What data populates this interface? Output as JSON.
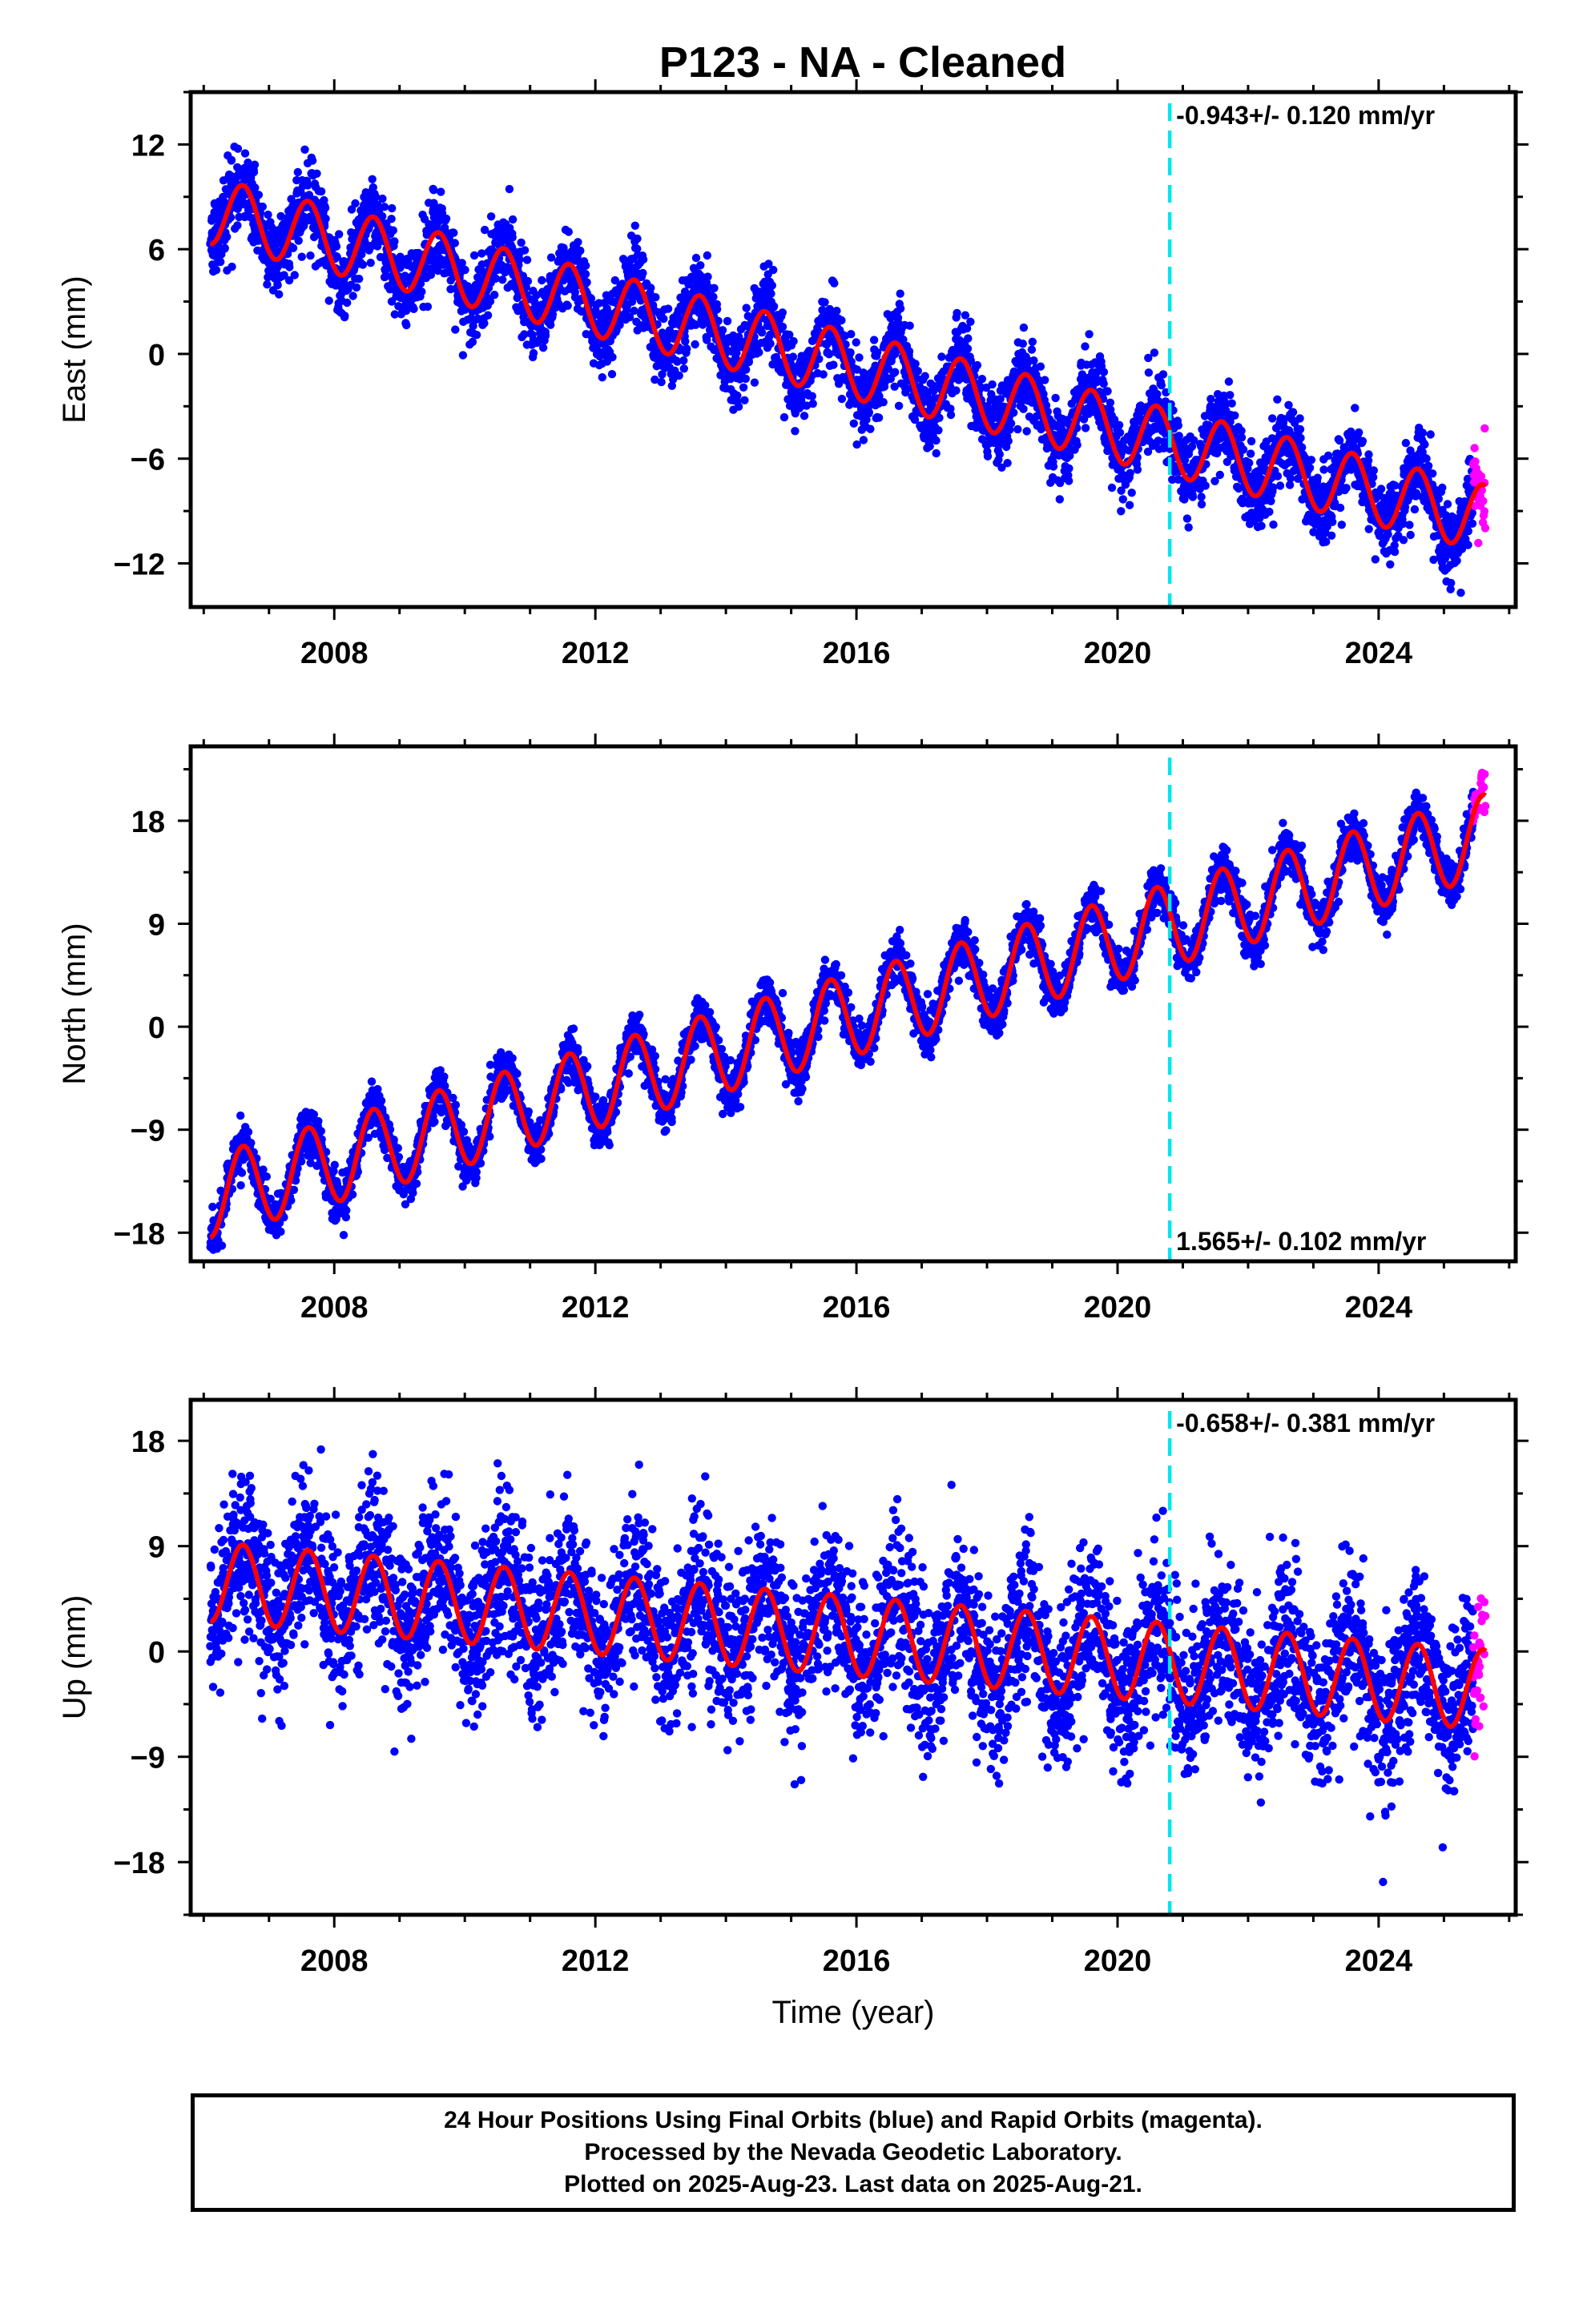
{
  "page": {
    "title": "P123  - NA - Cleaned",
    "footer": [
      "24 Hour Positions Using Final Orbits (blue) and Rapid Orbits (magenta).",
      "Processed by the Nevada Geodetic Laboratory.",
      "Plotted on 2025-Aug-23. Last data on 2025-Aug-21."
    ]
  },
  "colors": {
    "final_orbits": "#0000ff",
    "rapid_orbits": "#ff00ff",
    "model_fit": "#ff0000",
    "event_line": "#00e5ee",
    "frame": "#000000"
  },
  "chart_data": [
    {
      "type": "scatter",
      "name": "east",
      "ylabel": "East (mm)",
      "xlim": [
        2005.8,
        2026.1
      ],
      "ylim": [
        -14.5,
        15.0
      ],
      "xticks": [
        2008,
        2012,
        2016,
        2020,
        2024
      ],
      "xtick_labels": [
        "2008",
        "2012",
        "2016",
        "2020",
        "2024"
      ],
      "yticks": [
        -12,
        -6,
        0,
        6,
        12
      ],
      "ytick_labels": [
        "−12",
        "−6",
        "0",
        "6",
        "12"
      ],
      "rate_label": "-0.943+/- 0.120 mm/yr",
      "rate_position": "top-right",
      "trend": {
        "y2006": 8.3,
        "y2025_5": -9.3
      },
      "seasonal_amplitude": 1.9,
      "scatter_sd": 1.1,
      "event_year": 2020.8,
      "final_end": 2025.45,
      "rapid_end": 2025.64
    },
    {
      "type": "scatter",
      "name": "north",
      "ylabel": "North (mm)",
      "xlim": [
        2005.8,
        2026.1
      ],
      "ylim": [
        -20.5,
        24.5
      ],
      "xticks": [
        2008,
        2012,
        2016,
        2020,
        2024
      ],
      "xtick_labels": [
        "2008",
        "2012",
        "2016",
        "2020",
        "2024"
      ],
      "yticks": [
        -18,
        -9,
        0,
        9,
        18
      ],
      "ytick_labels": [
        "−18",
        "−9",
        "0",
        "9",
        "18"
      ],
      "rate_label": "1.565+/- 0.102 mm/yr",
      "rate_position": "bottom-right",
      "trend": {
        "y2006": -15.0,
        "y2025_5": 16.5
      },
      "seasonal_amplitude": 3.6,
      "scatter_sd": 1.0,
      "event_year": 2020.8,
      "final_end": 2025.45,
      "rapid_end": 2025.64
    },
    {
      "type": "scatter",
      "name": "up",
      "ylabel": "Up (mm)",
      "xlim": [
        2005.8,
        2026.1
      ],
      "ylim": [
        -22.5,
        21.5
      ],
      "xticks": [
        2008,
        2012,
        2016,
        2020,
        2024
      ],
      "xtick_labels": [
        "2008",
        "2012",
        "2016",
        "2020",
        "2024"
      ],
      "yticks": [
        -18,
        -9,
        0,
        9,
        18
      ],
      "ytick_labels": [
        "−18",
        "−9",
        "0",
        "9",
        "18"
      ],
      "rate_label": "-0.658+/- 0.381 mm/yr",
      "rate_position": "top-right",
      "trend": {
        "y2006": 6.0,
        "y2025_5": -3.2
      },
      "seasonal_amplitude": 3.4,
      "scatter_sd": 3.4,
      "event_year": 2020.8,
      "final_end": 2025.45,
      "rapid_end": 2025.64,
      "xlabel": "Time (year)"
    }
  ]
}
